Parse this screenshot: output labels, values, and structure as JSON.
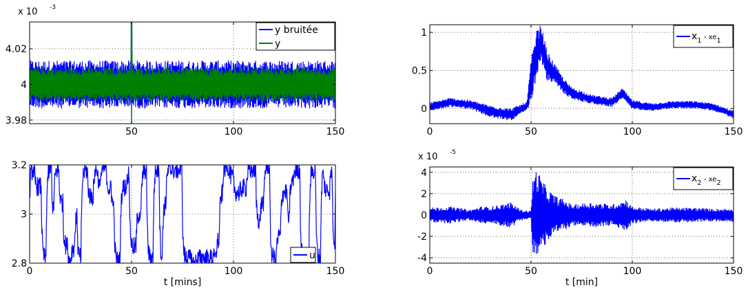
{
  "chart_data": [
    {
      "type": "line",
      "panel": "top-left",
      "exponent_label": "x 10",
      "exponent_power": "-3",
      "xlim": [
        0,
        150
      ],
      "ylim": [
        3.978,
        4.035
      ],
      "xticks": [
        50,
        100,
        150
      ],
      "xtick_labels": [
        "50",
        "100",
        "150"
      ],
      "yticks": [
        3.98,
        4.0,
        4.02
      ],
      "ytick_labels": [
        "3.98",
        "4",
        "4.02"
      ],
      "xlabel": "",
      "ylabel": "",
      "grid": true,
      "legend_position": "top-right",
      "series": [
        {
          "name": "y bruitée",
          "color": "#0000ff",
          "center": 4.0,
          "amplitude": 0.0135,
          "spike_x": 50,
          "spike_high": 4.035,
          "spike_low": 3.978
        },
        {
          "name": "y",
          "color": "#008000",
          "center": 4.0,
          "amplitude": 0.0095,
          "spike_x": 50,
          "spike_high": 4.035,
          "spike_low": 3.978
        }
      ]
    },
    {
      "type": "line",
      "panel": "top-right",
      "xlim": [
        0,
        150
      ],
      "ylim": [
        -0.2,
        1.1
      ],
      "xticks": [
        0,
        50,
        100,
        150
      ],
      "xtick_labels": [
        "0",
        "50",
        "100",
        "150"
      ],
      "yticks": [
        0,
        0.5,
        1
      ],
      "ytick_labels": [
        "0",
        "0.5",
        "1"
      ],
      "xlabel": "",
      "ylabel": "",
      "grid": true,
      "legend_position": "top-right",
      "series": [
        {
          "name": "x1 - xe1",
          "name_parts": [
            "x",
            "1",
            " - xe",
            "1"
          ],
          "color": "#0000ff",
          "envelope_x": [
            0,
            10,
            20,
            30,
            40,
            48,
            50,
            53,
            55,
            58,
            62,
            66,
            70,
            80,
            90,
            95,
            100,
            110,
            120,
            130,
            140,
            150
          ],
          "envelope_center": [
            0.02,
            0.08,
            0.05,
            -0.04,
            -0.08,
            0.03,
            0.35,
            0.75,
            0.85,
            0.55,
            0.45,
            0.3,
            0.2,
            0.12,
            0.08,
            0.2,
            0.05,
            0.02,
            0.05,
            0.05,
            0.02,
            -0.08
          ],
          "envelope_amplitude": [
            0.06,
            0.06,
            0.06,
            0.08,
            0.08,
            0.06,
            0.3,
            0.3,
            0.25,
            0.2,
            0.12,
            0.1,
            0.08,
            0.06,
            0.06,
            0.07,
            0.06,
            0.05,
            0.05,
            0.05,
            0.05,
            0.05
          ]
        }
      ]
    },
    {
      "type": "line",
      "panel": "bottom-left",
      "xlim": [
        0,
        150
      ],
      "ylim": [
        2.8,
        3.2
      ],
      "xticks": [
        0,
        50,
        100,
        150
      ],
      "xtick_labels": [
        "0",
        "50",
        "100",
        "150"
      ],
      "yticks": [
        2.8,
        3.0,
        3.2
      ],
      "ytick_labels": [
        "2.8",
        "3",
        "3.2"
      ],
      "xlabel": "t [mins]",
      "ylabel": "",
      "grid": true,
      "legend_position": "bottom-right",
      "series": [
        {
          "name": "u",
          "color": "#0000ff",
          "low": 2.8,
          "high": 3.2
        }
      ]
    },
    {
      "type": "line",
      "panel": "bottom-right",
      "exponent_label": "x 10",
      "exponent_power": "-5",
      "xlim": [
        0,
        150
      ],
      "ylim": [
        -4.5,
        4.5
      ],
      "xticks": [
        0,
        50,
        100,
        150
      ],
      "xtick_labels": [
        "0",
        "50",
        "100",
        "150"
      ],
      "yticks": [
        -4,
        -2,
        0,
        2,
        4
      ],
      "ytick_labels": [
        "-4",
        "-2",
        "0",
        "2",
        "4"
      ],
      "xlabel": "t [min]",
      "ylabel": "",
      "grid": true,
      "legend_position": "top-right",
      "series": [
        {
          "name": "x2 - xe2",
          "name_parts": [
            "x",
            "2",
            " - xe",
            "2"
          ],
          "color": "#0000ff",
          "envelope_x": [
            0,
            10,
            20,
            25,
            30,
            35,
            40,
            45,
            50,
            51,
            53,
            55,
            58,
            62,
            66,
            70,
            80,
            90,
            97,
            100,
            110,
            120,
            130,
            140,
            150
          ],
          "envelope_amplitude": [
            0.7,
            0.8,
            0.5,
            0.8,
            0.8,
            1.0,
            1.2,
            0.5,
            0.4,
            4.0,
            4.3,
            3.5,
            2.5,
            1.8,
            1.5,
            1.0,
            1.2,
            1.0,
            1.5,
            0.8,
            0.6,
            0.7,
            0.7,
            0.6,
            0.6
          ]
        }
      ]
    }
  ]
}
